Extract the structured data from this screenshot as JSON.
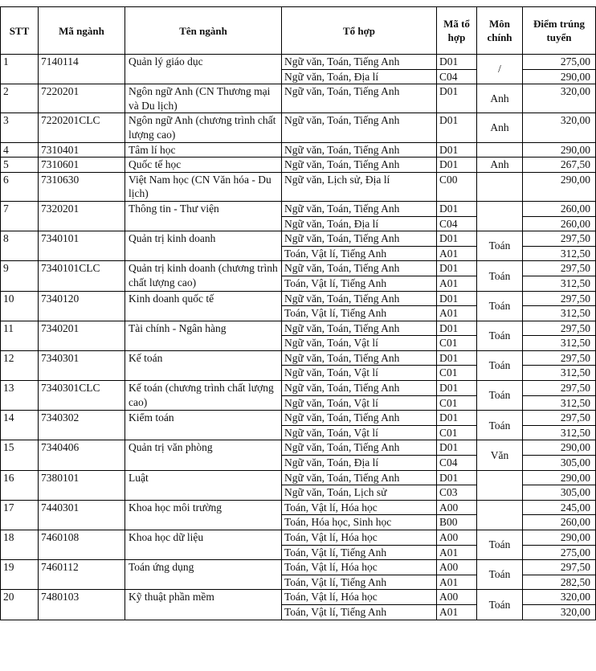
{
  "table": {
    "headers": [
      "STT",
      "Mã ngành",
      "Tên ngành",
      "Tổ hợp",
      "Mã tổ hợp",
      "Môn chính",
      "Điểm trúng tuyển"
    ],
    "rows": [
      {
        "stt": "1",
        "code": "7140114",
        "name": "Quản lý giáo dục",
        "main": "/",
        "combos": [
          {
            "subjects": "Ngữ văn, Toán, Tiếng Anh",
            "code": "D01",
            "score": "275,00"
          },
          {
            "subjects": "Ngữ văn, Toán, Địa lí",
            "code": "C04",
            "score": "290,00"
          }
        ]
      },
      {
        "stt": "2",
        "code": "7220201",
        "name": "Ngôn ngữ Anh (CN Thương mại và Du lịch)",
        "main": "Anh",
        "combos": [
          {
            "subjects": "Ngữ văn, Toán, Tiếng Anh",
            "code": "D01",
            "score": "320,00"
          }
        ]
      },
      {
        "stt": "3",
        "code": "7220201CLC",
        "name": "Ngôn ngữ Anh (chương trình chất lượng cao)",
        "main": "Anh",
        "combos": [
          {
            "subjects": "Ngữ văn, Toán, Tiếng Anh",
            "code": "D01",
            "score": "320,00"
          }
        ]
      },
      {
        "stt": "4",
        "code": "7310401",
        "name": "Tâm lí học",
        "combos": [
          {
            "subjects": "Ngữ văn, Toán, Tiếng Anh",
            "code": "D01",
            "score": "290,00"
          }
        ]
      },
      {
        "stt": "5",
        "code": "7310601",
        "name": "Quốc tế học",
        "main": "Anh",
        "combos": [
          {
            "subjects": "Ngữ văn, Toán, Tiếng Anh",
            "code": "D01",
            "score": "267,50"
          }
        ]
      },
      {
        "stt": "6",
        "code": "7310630",
        "name": "Việt Nam học (CN Văn hóa - Du lịch)",
        "combos": [
          {
            "subjects": "Ngữ văn, Lịch sử, Địa lí",
            "code": "C00",
            "score": "290,00"
          }
        ]
      },
      {
        "stt": "7",
        "code": "7320201",
        "name": "Thông tin - Thư viện",
        "combos": [
          {
            "subjects": "Ngữ văn, Toán, Tiếng Anh",
            "code": "D01",
            "score": "260,00"
          },
          {
            "subjects": "Ngữ văn, Toán, Địa lí",
            "code": "C04",
            "score": "260,00"
          }
        ]
      },
      {
        "stt": "8",
        "code": "7340101",
        "name": "Quản trị kinh doanh",
        "main": "Toán",
        "combos": [
          {
            "subjects": "Ngữ văn, Toán, Tiếng Anh",
            "code": "D01",
            "score": "297,50"
          },
          {
            "subjects": "Toán, Vật lí, Tiếng Anh",
            "code": "A01",
            "score": "312,50"
          }
        ]
      },
      {
        "stt": "9",
        "code": "7340101CLC",
        "name": "Quản trị kinh doanh (chương trình chất lượng cao)",
        "main": "Toán",
        "combos": [
          {
            "subjects": "Ngữ văn, Toán, Tiếng Anh",
            "code": "D01",
            "score": "297,50"
          },
          {
            "subjects": "Toán, Vật lí, Tiếng Anh",
            "code": "A01",
            "score": "312,50"
          }
        ]
      },
      {
        "stt": "10",
        "code": "7340120",
        "name": "Kinh doanh quốc tế",
        "main": "Toán",
        "combos": [
          {
            "subjects": "Ngữ văn, Toán, Tiếng Anh",
            "code": "D01",
            "score": "297,50"
          },
          {
            "subjects": "Toán, Vật lí, Tiếng Anh",
            "code": "A01",
            "score": "312,50"
          }
        ]
      },
      {
        "stt": "11",
        "code": "7340201",
        "name": "Tài chính - Ngân hàng",
        "main": "Toán",
        "combos": [
          {
            "subjects": "Ngữ văn, Toán, Tiếng Anh",
            "code": "D01",
            "score": "297,50"
          },
          {
            "subjects": "Ngữ văn, Toán, Vật lí",
            "code": "C01",
            "score": "312,50"
          }
        ]
      },
      {
        "stt": "12",
        "code": "7340301",
        "name": "Kế toán",
        "main": "Toán",
        "combos": [
          {
            "subjects": "Ngữ văn, Toán, Tiếng Anh",
            "code": "D01",
            "score": "297,50"
          },
          {
            "subjects": "Ngữ văn, Toán, Vật lí",
            "code": "C01",
            "score": "312,50"
          }
        ]
      },
      {
        "stt": "13",
        "code": "7340301CLC",
        "name": "Kế toán (chương trình chất lượng cao)",
        "main": "Toán",
        "combos": [
          {
            "subjects": "Ngữ văn, Toán, Tiếng Anh",
            "code": "D01",
            "score": "297,50"
          },
          {
            "subjects": "Ngữ văn, Toán, Vật lí",
            "code": "C01",
            "score": "312,50"
          }
        ]
      },
      {
        "stt": "14",
        "code": "7340302",
        "name": "Kiểm toán",
        "main": "Toán",
        "combos": [
          {
            "subjects": "Ngữ văn, Toán, Tiếng Anh",
            "code": "D01",
            "score": "297,50"
          },
          {
            "subjects": "Ngữ văn, Toán, Vật lí",
            "code": "C01",
            "score": "312,50"
          }
        ]
      },
      {
        "stt": "15",
        "code": "7340406",
        "name": "Quản trị văn phòng",
        "main": "Văn",
        "combos": [
          {
            "subjects": "Ngữ văn, Toán, Tiếng Anh",
            "code": "D01",
            "score": "290,00"
          },
          {
            "subjects": "Ngữ văn, Toán, Địa lí",
            "code": "C04",
            "score": "305,00"
          }
        ]
      },
      {
        "stt": "16",
        "code": "7380101",
        "name": "Luật",
        "combos": [
          {
            "subjects": "Ngữ văn, Toán, Tiếng Anh",
            "code": "D01",
            "score": "290,00"
          },
          {
            "subjects": "Ngữ văn, Toán, Lịch sử",
            "code": "C03",
            "score": "305,00"
          }
        ]
      },
      {
        "stt": "17",
        "code": "7440301",
        "name": "Khoa học môi trường",
        "combos": [
          {
            "subjects": "Toán, Vật lí, Hóa học",
            "code": "A00",
            "score": "245,00"
          },
          {
            "subjects": "Toán, Hóa học, Sinh học",
            "code": "B00",
            "score": "260,00"
          }
        ]
      },
      {
        "stt": "18",
        "code": "7460108",
        "name": "Khoa học dữ liệu",
        "main": "Toán",
        "combos": [
          {
            "subjects": "Toán, Vật lí, Hóa học",
            "code": "A00",
            "score": "290,00"
          },
          {
            "subjects": "Toán, Vật lí, Tiếng Anh",
            "code": "A01",
            "score": "275,00"
          }
        ]
      },
      {
        "stt": "19",
        "code": "7460112",
        "name": "Toán ứng dụng",
        "main": "Toán",
        "combos": [
          {
            "subjects": "Toán, Vật lí, Hóa học",
            "code": "A00",
            "score": "297,50"
          },
          {
            "subjects": "Toán, Vật lí, Tiếng Anh",
            "code": "A01",
            "score": "282,50"
          }
        ]
      },
      {
        "stt": "20",
        "code": "7480103",
        "name": "Kỹ thuật phần mềm",
        "main": "Toán",
        "combos": [
          {
            "subjects": "Toán, Vật lí, Hóa học",
            "code": "A00",
            "score": "320,00"
          },
          {
            "subjects": "Toán, Vật lí, Tiếng Anh",
            "code": "A01",
            "score": "320,00"
          }
        ]
      }
    ]
  }
}
